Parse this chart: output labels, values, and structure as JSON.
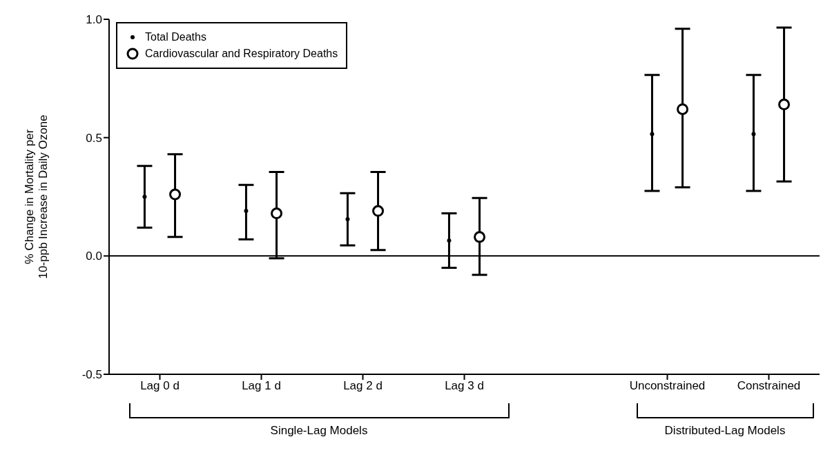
{
  "chart_data": {
    "type": "scatter",
    "ylabel": "% Change in Mortality per\n10-ppb Increase in Daily Ozone",
    "categories": [
      "Lag 0 d",
      "Lag 1 d",
      "Lag 2 d",
      "Lag 3 d",
      null,
      "Unconstrained",
      "Constrained"
    ],
    "series": [
      {
        "name": "Total Deaths",
        "color": "#000000",
        "marker": "circle",
        "values": [
          0.25,
          0.19,
          0.155,
          0.065,
          null,
          0.515,
          0.515
        ],
        "errors": [
          [
            0.12,
            0.38
          ],
          [
            0.07,
            0.3
          ],
          [
            0.045,
            0.265
          ],
          [
            -0.05,
            0.18
          ],
          null,
          [
            0.275,
            0.765
          ],
          [
            0.275,
            0.765
          ]
        ]
      },
      {
        "name": "Cardiovascular and Respiratory Deaths",
        "color": "#000000",
        "marker": "circle",
        "values": [
          0.26,
          0.18,
          0.19,
          0.08,
          null,
          0.62,
          0.64
        ],
        "errors": [
          [
            0.08,
            0.43
          ],
          [
            -0.01,
            0.355
          ],
          [
            0.025,
            0.355
          ],
          [
            -0.08,
            0.245
          ],
          null,
          [
            0.29,
            0.96
          ],
          [
            0.315,
            0.965
          ]
        ]
      }
    ],
    "ylim": [
      -0.5,
      1.0
    ],
    "yticks": [
      {
        "value": -0.5,
        "label": "-0.5"
      },
      {
        "value": 0,
        "label": "0.0"
      },
      {
        "value": 0.5,
        "label": "0.5"
      },
      {
        "value": 1,
        "label": "1.0"
      }
    ],
    "ref_lines": [
      {
        "axis": "y",
        "value": 0,
        "color": "#000000"
      }
    ],
    "legend": "top left",
    "grid": false,
    "annotations": [
      "Single-Lag Models",
      "Distributed-Lag Models"
    ]
  }
}
